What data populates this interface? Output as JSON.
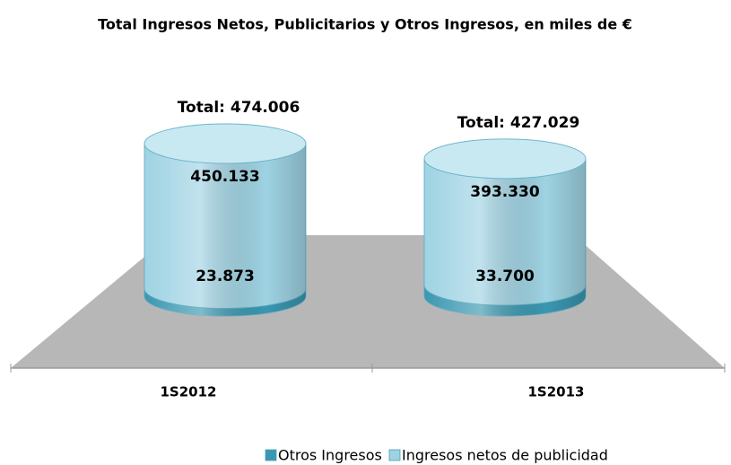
{
  "chart_data": {
    "type": "bar3d-cylinder",
    "title": "Total Ingresos Netos, Publicitarios y Otros Ingresos, en miles de €",
    "categories": [
      "1S2012",
      "1S2013"
    ],
    "series": [
      {
        "name": "Otros Ingresos",
        "color": "#3a97b0",
        "values": [
          23873,
          33700
        ],
        "value_labels": [
          "23.873",
          "33.700"
        ]
      },
      {
        "name": "Ingresos netos de publicidad",
        "color": "#9fd3e3",
        "values": [
          450133,
          393330
        ],
        "value_labels": [
          "450.133",
          "393.330"
        ]
      }
    ],
    "annotations": [
      "Total: 474.006",
      "Total: 427.029"
    ],
    "stacked": true
  }
}
